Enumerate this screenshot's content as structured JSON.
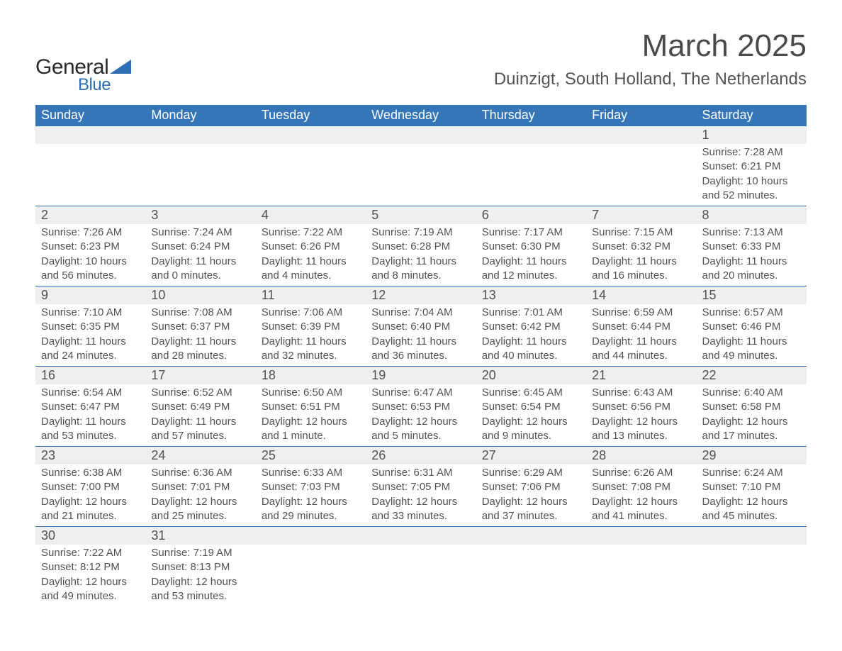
{
  "logo": {
    "text1": "General",
    "text2": "Blue",
    "triangle_color": "#2f6fb3"
  },
  "title": "March 2025",
  "subtitle": "Duinzigt, South Holland, The Netherlands",
  "colors": {
    "header_bg": "#3576b9",
    "header_text": "#ffffff",
    "daynum_bg": "#efefef",
    "body_text": "#525252",
    "row_border": "#3576b9",
    "page_bg": "#ffffff"
  },
  "typography": {
    "title_fontsize": 44,
    "subtitle_fontsize": 24,
    "header_fontsize": 18,
    "daynum_fontsize": 18,
    "detail_fontsize": 15
  },
  "layout": {
    "columns": 7,
    "weeks": 6,
    "first_day_column": 6
  },
  "weekdays": [
    "Sunday",
    "Monday",
    "Tuesday",
    "Wednesday",
    "Thursday",
    "Friday",
    "Saturday"
  ],
  "days": [
    {
      "n": 1,
      "sunrise": "7:28 AM",
      "sunset": "6:21 PM",
      "daylight": "10 hours and 52 minutes."
    },
    {
      "n": 2,
      "sunrise": "7:26 AM",
      "sunset": "6:23 PM",
      "daylight": "10 hours and 56 minutes."
    },
    {
      "n": 3,
      "sunrise": "7:24 AM",
      "sunset": "6:24 PM",
      "daylight": "11 hours and 0 minutes."
    },
    {
      "n": 4,
      "sunrise": "7:22 AM",
      "sunset": "6:26 PM",
      "daylight": "11 hours and 4 minutes."
    },
    {
      "n": 5,
      "sunrise": "7:19 AM",
      "sunset": "6:28 PM",
      "daylight": "11 hours and 8 minutes."
    },
    {
      "n": 6,
      "sunrise": "7:17 AM",
      "sunset": "6:30 PM",
      "daylight": "11 hours and 12 minutes."
    },
    {
      "n": 7,
      "sunrise": "7:15 AM",
      "sunset": "6:32 PM",
      "daylight": "11 hours and 16 minutes."
    },
    {
      "n": 8,
      "sunrise": "7:13 AM",
      "sunset": "6:33 PM",
      "daylight": "11 hours and 20 minutes."
    },
    {
      "n": 9,
      "sunrise": "7:10 AM",
      "sunset": "6:35 PM",
      "daylight": "11 hours and 24 minutes."
    },
    {
      "n": 10,
      "sunrise": "7:08 AM",
      "sunset": "6:37 PM",
      "daylight": "11 hours and 28 minutes."
    },
    {
      "n": 11,
      "sunrise": "7:06 AM",
      "sunset": "6:39 PM",
      "daylight": "11 hours and 32 minutes."
    },
    {
      "n": 12,
      "sunrise": "7:04 AM",
      "sunset": "6:40 PM",
      "daylight": "11 hours and 36 minutes."
    },
    {
      "n": 13,
      "sunrise": "7:01 AM",
      "sunset": "6:42 PM",
      "daylight": "11 hours and 40 minutes."
    },
    {
      "n": 14,
      "sunrise": "6:59 AM",
      "sunset": "6:44 PM",
      "daylight": "11 hours and 44 minutes."
    },
    {
      "n": 15,
      "sunrise": "6:57 AM",
      "sunset": "6:46 PM",
      "daylight": "11 hours and 49 minutes."
    },
    {
      "n": 16,
      "sunrise": "6:54 AM",
      "sunset": "6:47 PM",
      "daylight": "11 hours and 53 minutes."
    },
    {
      "n": 17,
      "sunrise": "6:52 AM",
      "sunset": "6:49 PM",
      "daylight": "11 hours and 57 minutes."
    },
    {
      "n": 18,
      "sunrise": "6:50 AM",
      "sunset": "6:51 PM",
      "daylight": "12 hours and 1 minute."
    },
    {
      "n": 19,
      "sunrise": "6:47 AM",
      "sunset": "6:53 PM",
      "daylight": "12 hours and 5 minutes."
    },
    {
      "n": 20,
      "sunrise": "6:45 AM",
      "sunset": "6:54 PM",
      "daylight": "12 hours and 9 minutes."
    },
    {
      "n": 21,
      "sunrise": "6:43 AM",
      "sunset": "6:56 PM",
      "daylight": "12 hours and 13 minutes."
    },
    {
      "n": 22,
      "sunrise": "6:40 AM",
      "sunset": "6:58 PM",
      "daylight": "12 hours and 17 minutes."
    },
    {
      "n": 23,
      "sunrise": "6:38 AM",
      "sunset": "7:00 PM",
      "daylight": "12 hours and 21 minutes."
    },
    {
      "n": 24,
      "sunrise": "6:36 AM",
      "sunset": "7:01 PM",
      "daylight": "12 hours and 25 minutes."
    },
    {
      "n": 25,
      "sunrise": "6:33 AM",
      "sunset": "7:03 PM",
      "daylight": "12 hours and 29 minutes."
    },
    {
      "n": 26,
      "sunrise": "6:31 AM",
      "sunset": "7:05 PM",
      "daylight": "12 hours and 33 minutes."
    },
    {
      "n": 27,
      "sunrise": "6:29 AM",
      "sunset": "7:06 PM",
      "daylight": "12 hours and 37 minutes."
    },
    {
      "n": 28,
      "sunrise": "6:26 AM",
      "sunset": "7:08 PM",
      "daylight": "12 hours and 41 minutes."
    },
    {
      "n": 29,
      "sunrise": "6:24 AM",
      "sunset": "7:10 PM",
      "daylight": "12 hours and 45 minutes."
    },
    {
      "n": 30,
      "sunrise": "7:22 AM",
      "sunset": "8:12 PM",
      "daylight": "12 hours and 49 minutes."
    },
    {
      "n": 31,
      "sunrise": "7:19 AM",
      "sunset": "8:13 PM",
      "daylight": "12 hours and 53 minutes."
    }
  ],
  "labels": {
    "sunrise": "Sunrise:",
    "sunset": "Sunset:",
    "daylight": "Daylight:"
  }
}
